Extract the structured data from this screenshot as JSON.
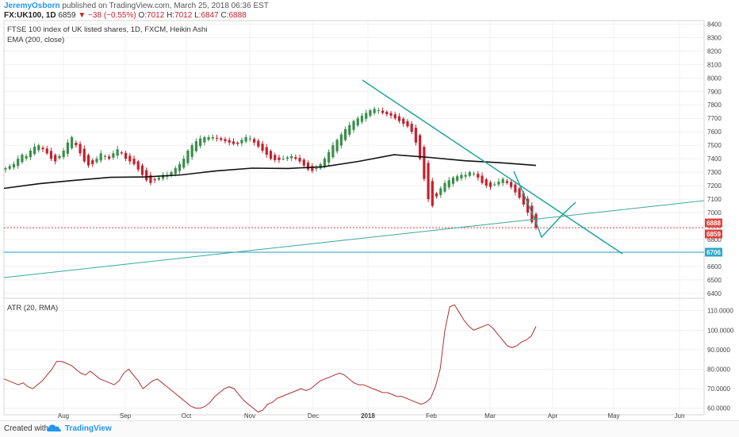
{
  "header": {
    "author": "JeremyOsborn",
    "published_text": " published on TradingView.com, March 25, 2018 06:36 EST",
    "symbol": "FX:UK100, 1D",
    "last": "6859",
    "change": "−38 (−0.55%)",
    "open_label": "O:",
    "open": "7012",
    "high_label": "H:",
    "high": "7012",
    "low_label": "L:",
    "low": "6847",
    "close_label": "C:",
    "close": "6888"
  },
  "footer": {
    "created_with": "Created with",
    "brand": "TradingView"
  },
  "chart_data": [
    {
      "type": "candlestick",
      "title": "FTSE 100 index of UK listed shares, 1D, FXCM, Heikin Ashi",
      "indicator_label": "EMA (200, close)",
      "x_ticks": [
        "Aug",
        "Sep",
        "Oct",
        "Nov",
        "Dec",
        "2018",
        "Feb",
        "Mar",
        "Apr",
        "May",
        "Jun"
      ],
      "y_ticks": [
        8400,
        8300,
        8200,
        8100,
        8000,
        7900,
        7800,
        7700,
        7600,
        7500,
        7400,
        7300,
        7200,
        7100,
        7000,
        6900,
        6800,
        6700,
        6600,
        6500,
        6400
      ],
      "ylim": [
        6370,
        8420
      ],
      "price_badges": [
        {
          "label": "6888",
          "value": 6888,
          "color": "#e0413c"
        },
        {
          "label": "6859",
          "value": 6859,
          "color": "#e0413c"
        },
        {
          "label": "6706",
          "value": 6706,
          "color": "#2aa7c8"
        }
      ],
      "close_series": [
        7330,
        7345,
        7360,
        7400,
        7430,
        7420,
        7460,
        7490,
        7500,
        7470,
        7440,
        7400,
        7380,
        7420,
        7460,
        7520,
        7560,
        7500,
        7440,
        7380,
        7350,
        7360,
        7400,
        7440,
        7420,
        7400,
        7440,
        7470,
        7440,
        7400,
        7380,
        7360,
        7320,
        7280,
        7240,
        7220,
        7240,
        7260,
        7280,
        7280,
        7300,
        7330,
        7360,
        7400,
        7460,
        7500,
        7530,
        7550,
        7560,
        7560,
        7560,
        7550,
        7540,
        7530,
        7520,
        7510,
        7510,
        7540,
        7560,
        7550,
        7520,
        7490,
        7460,
        7430,
        7400,
        7390,
        7390,
        7400,
        7410,
        7420,
        7400,
        7380,
        7350,
        7320,
        7310,
        7330,
        7360,
        7400,
        7450,
        7500,
        7540,
        7580,
        7620,
        7650,
        7680,
        7700,
        7720,
        7740,
        7760,
        7770,
        7760,
        7740,
        7730,
        7720,
        7700,
        7680,
        7660,
        7640,
        7600,
        7520,
        7400,
        7250,
        7100,
        7050,
        7120,
        7180,
        7220,
        7240,
        7260,
        7270,
        7280,
        7280,
        7300,
        7290,
        7260,
        7220,
        7200,
        7190,
        7210,
        7230,
        7250,
        7220,
        7190,
        7150,
        7110,
        7060,
        7000,
        6930,
        6888
      ],
      "ema": {
        "name": "EMA (200, close)",
        "values": [
          7180,
          7215,
          7240,
          7262,
          7265,
          7280,
          7310,
          7330,
          7328,
          7340,
          7380,
          7430,
          7410,
          7385,
          7370,
          7350
        ]
      },
      "horizontal_lines": [
        {
          "name": "close",
          "value": 6888,
          "color": "#e0413c",
          "dashed": true
        },
        {
          "name": "support",
          "value": 6706,
          "color": "#2aa7c8",
          "dashed": false
        }
      ]
    },
    {
      "type": "line",
      "title": "ATR (20, RMA)",
      "y_ticks": [
        "110.0000",
        "100.0000",
        "90.0000",
        "80.0000",
        "70.0000",
        "60.0000"
      ],
      "ylim": [
        57,
        116
      ],
      "series": [
        {
          "name": "ATR (20, RMA)",
          "values": [
            75,
            74,
            73,
            72,
            73,
            71,
            70,
            72,
            74,
            77,
            80,
            84,
            84,
            83,
            82,
            80,
            78,
            77,
            79,
            77,
            75,
            74,
            73,
            72,
            74,
            78,
            80,
            77,
            74,
            70,
            72,
            74,
            75,
            73,
            71,
            69,
            67,
            65,
            63,
            61,
            60,
            60,
            61,
            63,
            66,
            68,
            70,
            71,
            70,
            67,
            64,
            62,
            60,
            58,
            59,
            62,
            63,
            65,
            66,
            67,
            68,
            69,
            70,
            69,
            70,
            72,
            74,
            75,
            76,
            77,
            78,
            77,
            75,
            73,
            72,
            72,
            71,
            70,
            69,
            68,
            68,
            67,
            66,
            66,
            65,
            64,
            63,
            62,
            63,
            65,
            71,
            80,
            100,
            112,
            113,
            109,
            105,
            102,
            100,
            101,
            102,
            103,
            101,
            98,
            95,
            92,
            91,
            92,
            94,
            95,
            97,
            102
          ]
        }
      ]
    }
  ]
}
